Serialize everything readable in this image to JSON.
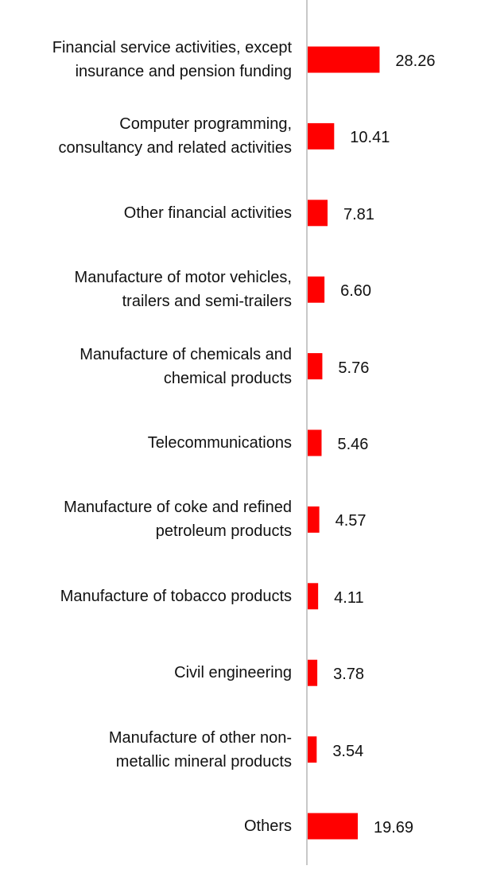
{
  "chart_data": {
    "type": "bar",
    "orientation": "horizontal",
    "title": "",
    "xlabel": "",
    "ylabel": "",
    "grid": false,
    "legend": "none",
    "bar_color": "#ff0000",
    "axis_color": "#c8c8c8",
    "categories": [
      [
        "Financial service activities, except",
        "insurance and pension funding"
      ],
      [
        "Computer programming,",
        "consultancy and related activities"
      ],
      [
        "Other financial activities"
      ],
      [
        "Manufacture of motor vehicles,",
        "trailers and semi-trailers"
      ],
      [
        "Manufacture of chemicals and",
        "chemical products"
      ],
      [
        "Telecommunications"
      ],
      [
        "Manufacture of coke and refined",
        "petroleum products"
      ],
      [
        "Manufacture of tobacco products"
      ],
      [
        "Civil engineering"
      ],
      [
        "Manufacture of other non-",
        "metallic mineral products"
      ],
      [
        "Others"
      ]
    ],
    "values": [
      28.26,
      10.41,
      7.81,
      6.6,
      5.76,
      5.46,
      4.57,
      4.11,
      3.78,
      3.54,
      19.69
    ],
    "value_labels": [
      "28.26",
      "10.41",
      "7.81",
      "6.60",
      "5.76",
      "5.46",
      "4.57",
      "4.11",
      "3.78",
      "3.54",
      "19.69"
    ]
  }
}
